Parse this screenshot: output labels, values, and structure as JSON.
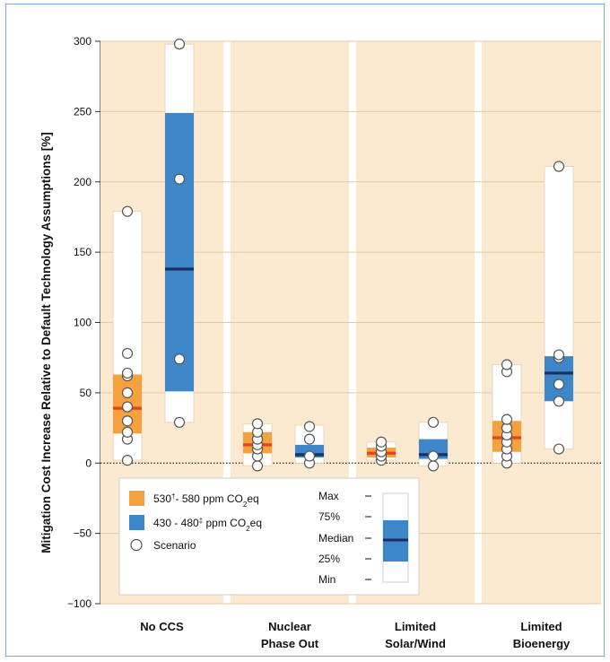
{
  "chart_data": {
    "type": "box",
    "ylabel": "Mitigation Cost Increase Relative to Default Technology Assumptions [%]",
    "ylim": [
      -100,
      300
    ],
    "yticks": [
      -100,
      -50,
      0,
      50,
      100,
      150,
      200,
      250,
      300
    ],
    "categories": [
      {
        "line1": "No CCS",
        "line2": ""
      },
      {
        "line1": "Nuclear",
        "line2": "Phase Out"
      },
      {
        "line1": "Limited",
        "line2": "Solar/Wind"
      },
      {
        "line1": "Limited",
        "line2": "Bioenergy"
      }
    ],
    "series": [
      {
        "name": "530†- 580 ppm CO2eq",
        "color": "#f5a13d",
        "median_color": "#e2431e",
        "boxes": [
          {
            "min": 2,
            "q1": 21,
            "median": 39,
            "q3": 63,
            "max": 179,
            "scenarios": [
              2,
              17,
              22,
              30,
              40,
              50,
              62,
              64,
              78,
              179
            ]
          },
          {
            "min": -2,
            "q1": 7,
            "median": 13,
            "q3": 22,
            "max": 28,
            "scenarios": [
              -2,
              5,
              10,
              13,
              17,
              22,
              28
            ]
          },
          {
            "min": 2,
            "q1": 4,
            "median": 7,
            "q3": 11,
            "max": 15,
            "scenarios": [
              2,
              5,
              8,
              12,
              15
            ]
          },
          {
            "min": 0,
            "q1": 8,
            "median": 18,
            "q3": 30,
            "max": 70,
            "scenarios": [
              0,
              5,
              10,
              15,
              20,
              25,
              31,
              65,
              70
            ]
          }
        ]
      },
      {
        "name": "430 - 480‡ ppm CO2eq",
        "color": "#3d86c8",
        "median_color": "#1a2f63",
        "boxes": [
          {
            "min": 29,
            "q1": 51,
            "median": 138,
            "q3": 249,
            "max": 298,
            "scenarios": [
              29,
              74,
              202,
              298
            ]
          },
          {
            "min": 0,
            "q1": 4,
            "median": 6,
            "q3": 13,
            "max": 27,
            "scenarios": [
              0,
              5,
              17,
              26
            ]
          },
          {
            "min": -2,
            "q1": 3,
            "median": 6,
            "q3": 17,
            "max": 29,
            "scenarios": [
              -2,
              5,
              29
            ]
          },
          {
            "min": 10,
            "q1": 44,
            "median": 64,
            "q3": 76,
            "max": 211,
            "scenarios": [
              10,
              44,
              56,
              75,
              77,
              211
            ]
          }
        ]
      }
    ],
    "legend": {
      "placement": "bottom-left",
      "items": [
        {
          "label_main": "530",
          "label_sup": "†",
          "label_rest": "- 580  ppm CO",
          "label_sub": "2",
          "label_end": "eq",
          "color": "#f5a13d"
        },
        {
          "label_main": "430 - 480",
          "label_sup": "‡",
          "label_rest": " ppm CO",
          "label_sub": "2",
          "label_end": "eq",
          "color": "#3d86c8"
        },
        {
          "label_main": "Scenario",
          "label_sup": "",
          "label_rest": "",
          "label_sub": "",
          "label_end": "",
          "color": ""
        }
      ],
      "key_labels": [
        "Max",
        "75%",
        "Median",
        "25%",
        "Min"
      ]
    },
    "colors": {
      "panel_bg": "#fbead0",
      "separator": "#ffffff",
      "frame": "#7fa7d6"
    }
  }
}
